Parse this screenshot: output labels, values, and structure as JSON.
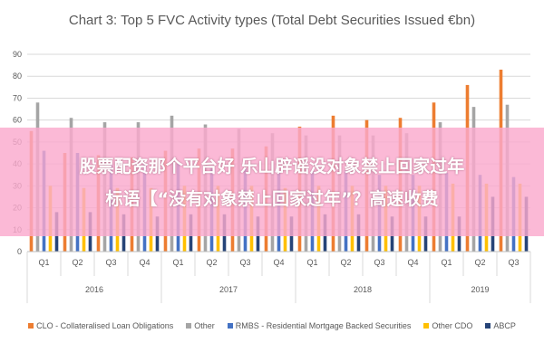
{
  "chart_data": {
    "type": "bar",
    "title": "Chart 3: Top 5 FVC Activity types (Total Debt Securities Issued €bn)",
    "quarters": [
      "Q1",
      "Q2",
      "Q3",
      "Q4",
      "Q1",
      "Q2",
      "Q3",
      "Q4",
      "Q1",
      "Q2",
      "Q3",
      "Q4",
      "Q1",
      "Q2",
      "Q3"
    ],
    "years": [
      {
        "label": "2016",
        "span": 4
      },
      {
        "label": "2017",
        "span": 4
      },
      {
        "label": "2018",
        "span": 4
      },
      {
        "label": "2019",
        "span": 3
      }
    ],
    "ylim": [
      0,
      90
    ],
    "yticks": [
      "0",
      "10",
      "20",
      "30",
      "40",
      "50",
      "60",
      "70",
      "80",
      "90"
    ],
    "grid": true,
    "legend_position": "bottom",
    "series": [
      {
        "name": "CLO - Collateralised Loan Obligations",
        "color": "#ED7D31",
        "values": [
          55,
          45,
          44,
          43,
          46,
          47,
          47,
          48,
          57,
          62,
          60,
          61,
          68,
          76,
          83
        ]
      },
      {
        "name": "Other",
        "color": "#A5A5A5",
        "values": [
          68,
          61,
          59,
          59,
          62,
          58,
          56,
          54,
          53,
          53,
          53,
          54,
          59,
          66,
          67
        ]
      },
      {
        "name": "RMBS - Residential Mortgage Backed Securities",
        "color": "#4472C4",
        "values": [
          46,
          45,
          40,
          40,
          40,
          38,
          38,
          36,
          37,
          37,
          35,
          35,
          36,
          35,
          34
        ]
      },
      {
        "name": "Other CDO",
        "color": "#FFC000",
        "values": [
          30,
          29,
          29,
          29,
          30,
          30,
          30,
          29,
          30,
          30,
          30,
          30,
          31,
          31,
          31
        ]
      },
      {
        "name": "ABCP",
        "color": "#264478",
        "values": [
          18,
          18,
          17,
          16,
          17,
          17,
          16,
          16,
          17,
          17,
          16,
          16,
          16,
          25,
          25
        ]
      }
    ]
  },
  "overlay": {
    "line1": "股票配资那个平台好 乐山辟谣没对象禁止回家过年",
    "line2": "标语【“没有对象禁止回家过年”？高速收费"
  }
}
